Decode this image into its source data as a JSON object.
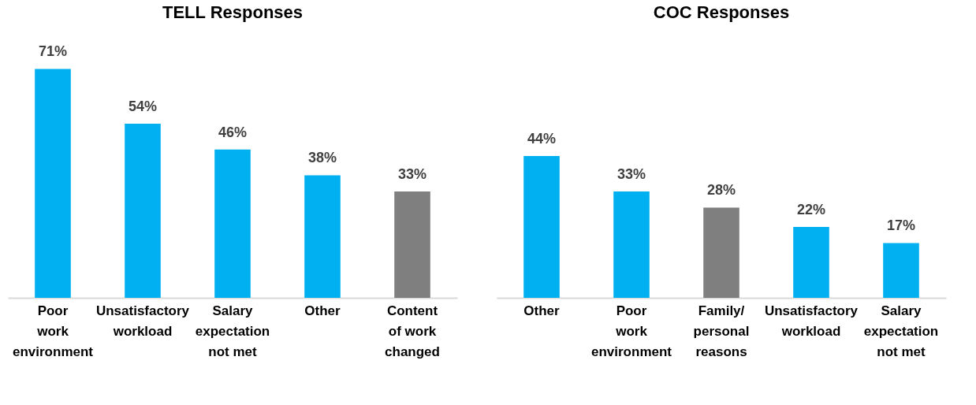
{
  "chart_data": [
    {
      "type": "bar",
      "title": "TELL Responses",
      "categories": [
        "Poor work environment",
        "Unsatisfactory workload",
        "Salary expectation not met",
        "Other",
        "Content of work changed"
      ],
      "values": [
        71,
        54,
        46,
        38,
        33
      ],
      "colors": [
        "#00b0f0",
        "#00b0f0",
        "#00b0f0",
        "#00b0f0",
        "#7f7f7f"
      ],
      "value_labels": [
        "71%",
        "54%",
        "46%",
        "38%",
        "33%"
      ]
    },
    {
      "type": "bar",
      "title": "COC Responses",
      "categories": [
        "Other",
        "Poor work environment",
        "Family/ personal reasons",
        "Unsatisfactory workload",
        "Salary expectation not met"
      ],
      "values": [
        44,
        33,
        28,
        22,
        17
      ],
      "colors": [
        "#00b0f0",
        "#00b0f0",
        "#7f7f7f",
        "#00b0f0",
        "#00b0f0"
      ],
      "value_labels": [
        "44%",
        "33%",
        "28%",
        "22%",
        "17%"
      ]
    }
  ]
}
